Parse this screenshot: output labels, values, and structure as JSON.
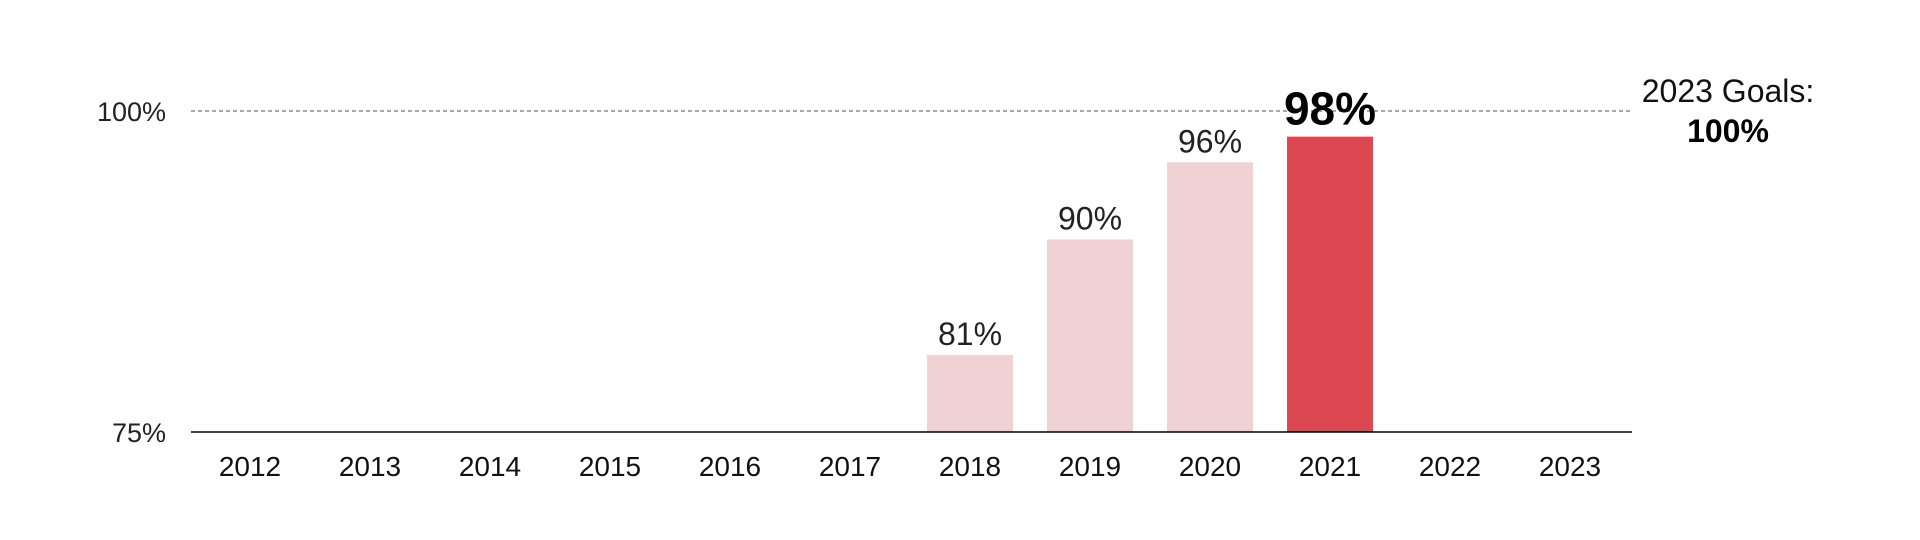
{
  "chart_data": {
    "type": "bar",
    "categories": [
      "2012",
      "2013",
      "2014",
      "2015",
      "2016",
      "2017",
      "2018",
      "2019",
      "2020",
      "2021",
      "2022",
      "2023"
    ],
    "values": [
      null,
      null,
      null,
      null,
      null,
      null,
      81,
      90,
      96,
      98,
      null,
      null
    ],
    "value_labels": [
      "",
      "",
      "",
      "",
      "",
      "",
      "81%",
      "90%",
      "96%",
      "98%",
      "",
      ""
    ],
    "highlight_index": 9,
    "ylim": [
      75,
      100
    ],
    "yticks": [
      {
        "value": 75,
        "label": "75%"
      },
      {
        "value": 100,
        "label": "100%"
      }
    ],
    "target": {
      "value": 100,
      "label": "2023 Goals:",
      "value_label": "100%"
    },
    "title": "",
    "xlabel": "",
    "ylabel": "",
    "grid": false,
    "colors": {
      "bar": "#f0d1d4",
      "highlight": "#dc4852",
      "axis": "#000000",
      "target_line": "#8a8a8a"
    }
  }
}
